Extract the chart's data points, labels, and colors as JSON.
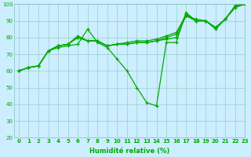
{
  "xlabel": "Humidité relative (%)",
  "xlim": [
    -0.5,
    23
  ],
  "ylim": [
    20,
    100
  ],
  "xticks": [
    0,
    1,
    2,
    3,
    4,
    5,
    6,
    7,
    8,
    9,
    10,
    11,
    12,
    13,
    14,
    15,
    16,
    17,
    18,
    19,
    20,
    21,
    22,
    23
  ],
  "yticks": [
    20,
    30,
    40,
    50,
    60,
    70,
    80,
    90,
    100
  ],
  "bg_color": "#cceeff",
  "grid_color": "#99cccc",
  "line_color": "#00aa00",
  "lines": [
    [
      60,
      62,
      63,
      72,
      74,
      75,
      76,
      85,
      77,
      74,
      67,
      60,
      50,
      41,
      39,
      77,
      77,
      95,
      90,
      90,
      85,
      91,
      98,
      100
    ],
    [
      60,
      62,
      63,
      72,
      75,
      76,
      80,
      78,
      78,
      75,
      76,
      76,
      77,
      77,
      78,
      79,
      80,
      93,
      90,
      90,
      86,
      91,
      99,
      100
    ],
    [
      60,
      62,
      63,
      72,
      75,
      76,
      80,
      78,
      78,
      75,
      76,
      76,
      77,
      77,
      78,
      80,
      82,
      94,
      90,
      90,
      86,
      91,
      99,
      100
    ],
    [
      60,
      62,
      63,
      72,
      75,
      76,
      81,
      78,
      78,
      75,
      76,
      77,
      78,
      78,
      79,
      81,
      83,
      93,
      91,
      90,
      86,
      91,
      99,
      100
    ]
  ]
}
